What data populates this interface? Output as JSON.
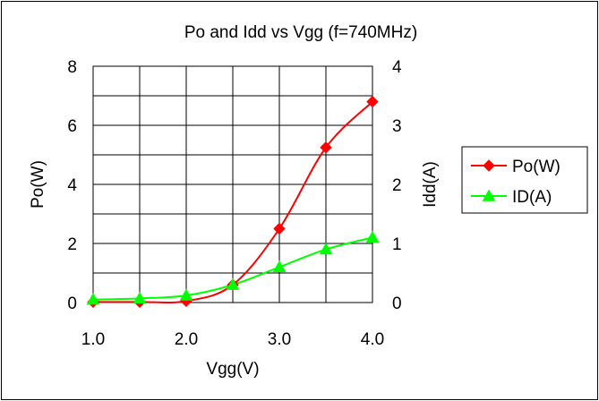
{
  "chart_data": {
    "type": "line",
    "title": "Po and Idd vs Vgg (f=740MHz)",
    "xlabel": "Vgg(V)",
    "ylabel_left": "Po(W)",
    "ylabel_right": "Idd(A)",
    "xlim": [
      1.0,
      4.0
    ],
    "ylim_left": [
      0,
      8
    ],
    "ylim_right": [
      0,
      4
    ],
    "x_ticks": [
      "1.0",
      "2.0",
      "3.0",
      "4.0"
    ],
    "y_ticks_left": [
      "0",
      "2",
      "4",
      "6",
      "8"
    ],
    "y_ticks_right": [
      "0",
      "1",
      "2",
      "3",
      "4"
    ],
    "grid": true,
    "legend_position": "right",
    "x": [
      1.0,
      1.5,
      2.0,
      2.5,
      3.0,
      3.5,
      4.0
    ],
    "series": [
      {
        "name": "Po(W)",
        "axis": "left",
        "color": "#ff0000",
        "marker": "diamond",
        "values": [
          0.02,
          0.02,
          0.05,
          0.6,
          2.5,
          5.25,
          6.8
        ]
      },
      {
        "name": "ID(A)",
        "axis": "right",
        "color": "#00ff00",
        "marker": "triangle",
        "values": [
          0.05,
          0.07,
          0.12,
          0.3,
          0.6,
          0.9,
          1.1
        ]
      }
    ]
  }
}
